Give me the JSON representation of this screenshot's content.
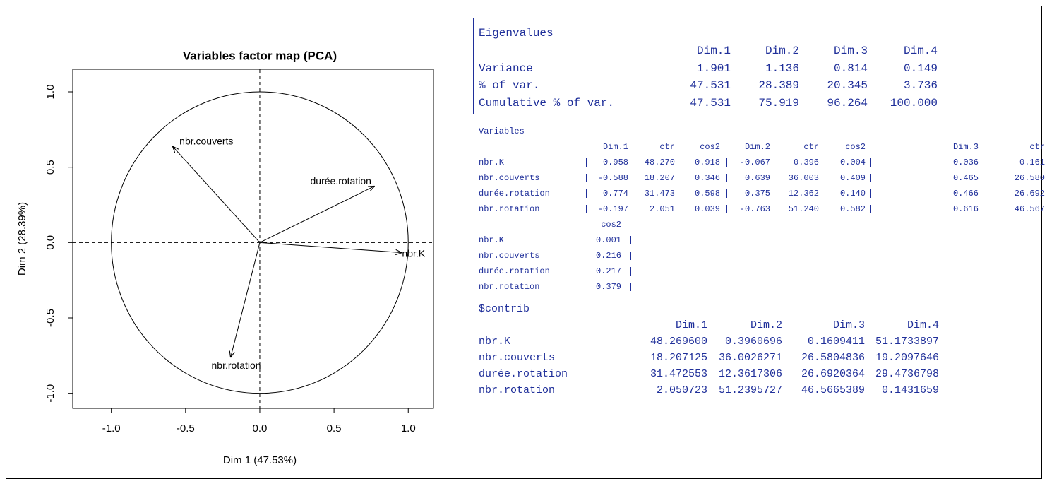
{
  "chart_data": {
    "type": "arrow",
    "title": "Variables factor map (PCA)",
    "xlabel": "Dim 1 (47.53%)",
    "ylabel": "Dim 2 (28.39%)",
    "categories": [
      "nbr.K",
      "nbr.couverts",
      "durée.rotation",
      "nbr.rotation"
    ],
    "x": [
      0.958,
      -0.588,
      0.774,
      -0.197
    ],
    "values": [
      -0.067,
      0.639,
      0.375,
      -0.763
    ],
    "color": "#000000",
    "xlim": [
      -1.26,
      1.17
    ],
    "ylim": [
      -1.1,
      1.15
    ],
    "xticks": [
      {
        "value": -1,
        "label": "-1.0"
      },
      -0.5,
      {
        "value": 0,
        "label": "0.0"
      },
      0.5,
      {
        "value": 1,
        "label": "1.0"
      }
    ],
    "yticks": [
      {
        "value": -1,
        "label": "-1.0"
      },
      -0.5,
      {
        "value": 0,
        "label": "0.0"
      },
      0.5,
      {
        "value": 1,
        "label": "1.0"
      }
    ]
  },
  "eigenvalues": {
    "title": "Eigenvalues",
    "header": [
      "Dim.1",
      "Dim.2",
      "Dim.3",
      "Dim.4"
    ],
    "rows": [
      [
        "Variance",
        "1.901",
        "1.136",
        "0.814",
        "0.149"
      ],
      [
        "% of var.",
        "47.531",
        "28.389",
        "20.345",
        "3.736"
      ],
      [
        "Cumulative % of var.",
        "47.531",
        "75.919",
        "96.264",
        "100.000"
      ]
    ]
  },
  "variables": {
    "title": "Variables",
    "header": [
      "Dim.1",
      "ctr",
      "cos2",
      "Dim.2",
      "ctr",
      "cos2",
      "Dim.3",
      "ctr"
    ],
    "rows": [
      [
        "nbr.K",
        "0.958",
        "48.270",
        "0.918",
        "-0.067",
        "0.396",
        "0.004",
        "0.036",
        "0.161"
      ],
      [
        "nbr.couverts",
        "-0.588",
        "18.207",
        "0.346",
        "0.639",
        "36.003",
        "0.409",
        "0.465",
        "26.580"
      ],
      [
        "durée.rotation",
        "0.774",
        "31.473",
        "0.598",
        "0.375",
        "12.362",
        "0.140",
        "0.466",
        "26.692"
      ],
      [
        "nbr.rotation",
        "-0.197",
        "2.051",
        "0.039",
        "-0.763",
        "51.240",
        "0.582",
        "0.616",
        "46.567"
      ]
    ],
    "header2": [
      "cos2"
    ],
    "rows2": [
      [
        "nbr.K",
        "0.001"
      ],
      [
        "nbr.couverts",
        "0.216"
      ],
      [
        "durée.rotation",
        "0.217"
      ],
      [
        "nbr.rotation",
        "0.379"
      ]
    ]
  },
  "contrib": {
    "title": "$contrib",
    "header": [
      "Dim.1",
      "Dim.2",
      "Dim.3",
      "Dim.4"
    ],
    "rows": [
      [
        "nbr.K",
        "48.269600",
        "0.3960696",
        "0.1609411",
        "51.1733897"
      ],
      [
        "nbr.couverts",
        "18.207125",
        "36.0026271",
        "26.5804836",
        "19.2097646"
      ],
      [
        "durée.rotation",
        "31.472553",
        "12.3617306",
        "26.6920364",
        "29.4736798"
      ],
      [
        "nbr.rotation",
        "2.050723",
        "51.2395727",
        "46.5665389",
        "0.1431659"
      ]
    ]
  }
}
